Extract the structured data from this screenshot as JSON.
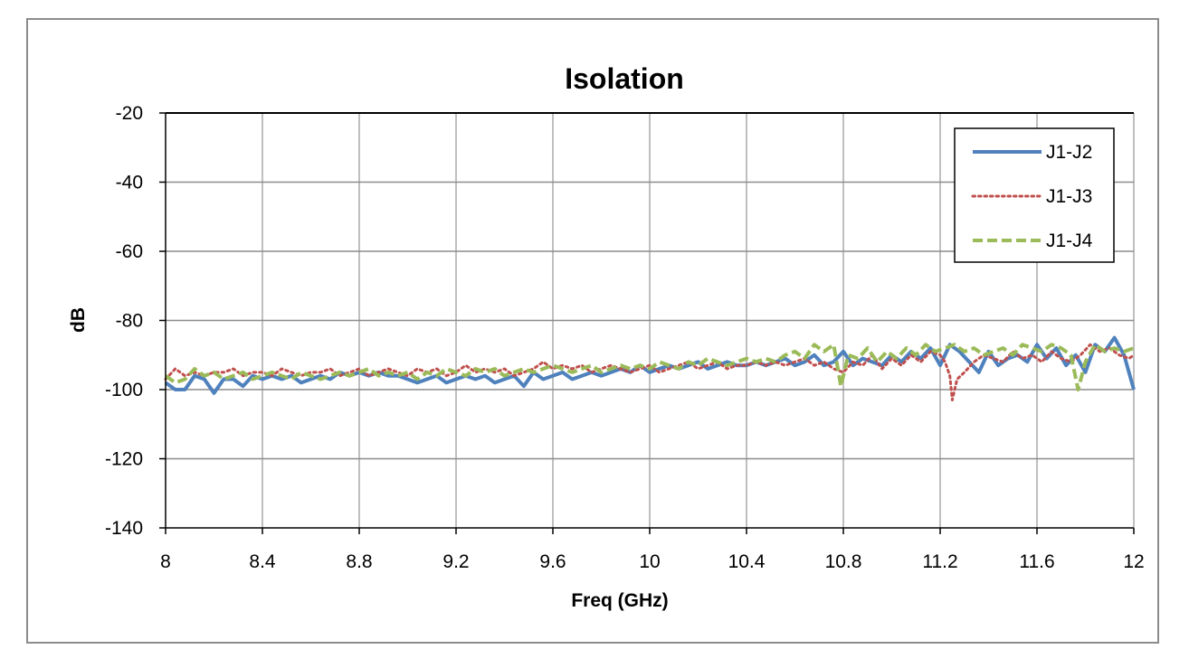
{
  "chart_data": {
    "type": "line",
    "title": "Isolation",
    "xlabel": "Freq (GHz)",
    "ylabel": "dB",
    "xlim": [
      8,
      12
    ],
    "ylim": [
      -140,
      -20
    ],
    "xticks": [
      8,
      8.4,
      8.8,
      9.2,
      9.6,
      10,
      10.4,
      10.8,
      11.2,
      11.6,
      12
    ],
    "xtick_labels": [
      "8",
      "8.4",
      "8.8",
      "9.2",
      "9.6",
      "10",
      "10.4",
      "10.8",
      "11.2",
      "11.6",
      "12"
    ],
    "yticks": [
      -140,
      -120,
      -100,
      -80,
      -60,
      -40,
      -20
    ],
    "ytick_labels": [
      "-140",
      "-120",
      "-100",
      "-80",
      "-60",
      "-40",
      "-20"
    ],
    "grid": true,
    "legend_position": "top-right",
    "series": [
      {
        "name": "J1-J2",
        "color": "#4F81BD",
        "style": "solid",
        "x": [
          8.0,
          8.04,
          8.08,
          8.12,
          8.16,
          8.2,
          8.24,
          8.28,
          8.32,
          8.36,
          8.4,
          8.44,
          8.48,
          8.52,
          8.56,
          8.6,
          8.64,
          8.68,
          8.72,
          8.76,
          8.8,
          8.84,
          8.88,
          8.92,
          8.96,
          9.0,
          9.04,
          9.08,
          9.12,
          9.16,
          9.2,
          9.24,
          9.28,
          9.32,
          9.36,
          9.4,
          9.44,
          9.48,
          9.52,
          9.56,
          9.6,
          9.64,
          9.68,
          9.72,
          9.76,
          9.8,
          9.84,
          9.88,
          9.92,
          9.96,
          10.0,
          10.04,
          10.08,
          10.12,
          10.16,
          10.2,
          10.24,
          10.28,
          10.32,
          10.36,
          10.4,
          10.44,
          10.48,
          10.52,
          10.56,
          10.6,
          10.64,
          10.68,
          10.72,
          10.76,
          10.8,
          10.84,
          10.88,
          10.92,
          10.96,
          11.0,
          11.04,
          11.08,
          11.12,
          11.16,
          11.2,
          11.24,
          11.28,
          11.32,
          11.36,
          11.4,
          11.44,
          11.48,
          11.52,
          11.56,
          11.6,
          11.64,
          11.68,
          11.72,
          11.76,
          11.8,
          11.84,
          11.88,
          11.92,
          11.96,
          12.0
        ],
        "values": [
          -98,
          -100,
          -100,
          -96,
          -97,
          -101,
          -97,
          -97,
          -99,
          -96,
          -97,
          -96,
          -97,
          -96,
          -98,
          -97,
          -96,
          -97,
          -95,
          -96,
          -95,
          -96,
          -95,
          -96,
          -96,
          -97,
          -98,
          -97,
          -96,
          -98,
          -97,
          -96,
          -97,
          -96,
          -98,
          -97,
          -96,
          -99,
          -95,
          -97,
          -96,
          -95,
          -97,
          -96,
          -95,
          -96,
          -95,
          -94,
          -95,
          -93,
          -95,
          -94,
          -93,
          -94,
          -93,
          -92,
          -94,
          -93,
          -92,
          -93,
          -93,
          -92,
          -93,
          -92,
          -91,
          -93,
          -92,
          -90,
          -93,
          -92,
          -89,
          -93,
          -91,
          -92,
          -93,
          -90,
          -92,
          -89,
          -91,
          -88,
          -93,
          -87,
          -89,
          -92,
          -95,
          -89,
          -93,
          -91,
          -90,
          -92,
          -87,
          -91,
          -88,
          -93,
          -90,
          -95,
          -87,
          -89,
          -85,
          -90,
          -100
        ]
      },
      {
        "name": "J1-J3",
        "color": "#C0504D",
        "style": "dotted",
        "x": [
          8.0,
          8.04,
          8.08,
          8.12,
          8.16,
          8.2,
          8.24,
          8.28,
          8.32,
          8.36,
          8.4,
          8.44,
          8.48,
          8.52,
          8.56,
          8.6,
          8.64,
          8.68,
          8.72,
          8.76,
          8.8,
          8.84,
          8.88,
          8.92,
          8.96,
          9.0,
          9.04,
          9.08,
          9.12,
          9.16,
          9.2,
          9.24,
          9.28,
          9.32,
          9.36,
          9.4,
          9.44,
          9.48,
          9.52,
          9.56,
          9.6,
          9.64,
          9.68,
          9.72,
          9.76,
          9.8,
          9.84,
          9.88,
          9.92,
          9.96,
          10.0,
          10.04,
          10.08,
          10.12,
          10.16,
          10.2,
          10.24,
          10.28,
          10.32,
          10.36,
          10.4,
          10.44,
          10.48,
          10.52,
          10.56,
          10.6,
          10.64,
          10.68,
          10.72,
          10.76,
          10.8,
          10.84,
          10.88,
          10.92,
          10.96,
          11.0,
          11.04,
          11.08,
          11.12,
          11.16,
          11.2,
          11.22,
          11.24,
          11.25,
          11.27,
          11.3,
          11.34,
          11.38,
          11.42,
          11.46,
          11.5,
          11.54,
          11.58,
          11.62,
          11.66,
          11.7,
          11.74,
          11.78,
          11.82,
          11.86,
          11.9,
          11.94,
          11.98,
          12.0
        ],
        "values": [
          -97,
          -94,
          -96,
          -95,
          -96,
          -95,
          -95,
          -94,
          -96,
          -95,
          -95,
          -96,
          -94,
          -95,
          -96,
          -95,
          -95,
          -94,
          -96,
          -95,
          -94,
          -96,
          -95,
          -94,
          -95,
          -96,
          -94,
          -95,
          -94,
          -96,
          -95,
          -93,
          -95,
          -94,
          -95,
          -94,
          -96,
          -95,
          -94,
          -92,
          -94,
          -93,
          -94,
          -93,
          -95,
          -94,
          -93,
          -94,
          -95,
          -94,
          -93,
          -95,
          -94,
          -93,
          -92,
          -94,
          -93,
          -92,
          -94,
          -93,
          -93,
          -92,
          -93,
          -92,
          -93,
          -92,
          -91,
          -93,
          -92,
          -94,
          -95,
          -92,
          -93,
          -90,
          -94,
          -91,
          -93,
          -90,
          -92,
          -89,
          -90,
          -92,
          -96,
          -103,
          -97,
          -95,
          -92,
          -90,
          -91,
          -92,
          -89,
          -91,
          -90,
          -92,
          -89,
          -91,
          -92,
          -90,
          -87,
          -89,
          -88,
          -90,
          -91,
          -90
        ]
      },
      {
        "name": "J1-J4",
        "color": "#9BBB59",
        "style": "dashed",
        "x": [
          8.0,
          8.04,
          8.08,
          8.12,
          8.16,
          8.2,
          8.24,
          8.28,
          8.32,
          8.36,
          8.4,
          8.44,
          8.48,
          8.52,
          8.56,
          8.6,
          8.64,
          8.68,
          8.72,
          8.76,
          8.8,
          8.84,
          8.88,
          8.92,
          8.96,
          9.0,
          9.04,
          9.08,
          9.12,
          9.16,
          9.2,
          9.24,
          9.28,
          9.32,
          9.36,
          9.4,
          9.44,
          9.48,
          9.52,
          9.56,
          9.6,
          9.64,
          9.68,
          9.72,
          9.76,
          9.8,
          9.84,
          9.88,
          9.92,
          9.96,
          10.0,
          10.04,
          10.08,
          10.12,
          10.16,
          10.2,
          10.24,
          10.28,
          10.32,
          10.36,
          10.4,
          10.44,
          10.48,
          10.52,
          10.56,
          10.6,
          10.64,
          10.68,
          10.72,
          10.76,
          10.79,
          10.82,
          10.86,
          10.9,
          10.94,
          10.98,
          11.02,
          11.06,
          11.1,
          11.14,
          11.18,
          11.22,
          11.26,
          11.3,
          11.34,
          11.38,
          11.42,
          11.46,
          11.5,
          11.54,
          11.58,
          11.62,
          11.66,
          11.7,
          11.74,
          11.77,
          11.8,
          11.84,
          11.88,
          11.92,
          11.96,
          12.0
        ],
        "values": [
          -96,
          -98,
          -97,
          -94,
          -96,
          -95,
          -97,
          -96,
          -95,
          -97,
          -96,
          -95,
          -96,
          -97,
          -95,
          -96,
          -97,
          -96,
          -95,
          -96,
          -95,
          -94,
          -96,
          -95,
          -96,
          -95,
          -97,
          -95,
          -96,
          -94,
          -95,
          -96,
          -94,
          -95,
          -94,
          -96,
          -95,
          -94,
          -95,
          -94,
          -93,
          -94,
          -95,
          -94,
          -93,
          -95,
          -94,
          -93,
          -94,
          -93,
          -94,
          -92,
          -93,
          -94,
          -92,
          -93,
          -91,
          -92,
          -93,
          -92,
          -91,
          -92,
          -91,
          -92,
          -90,
          -89,
          -91,
          -87,
          -89,
          -87,
          -99,
          -90,
          -91,
          -88,
          -92,
          -89,
          -91,
          -88,
          -90,
          -87,
          -89,
          -88,
          -87,
          -89,
          -88,
          -90,
          -89,
          -88,
          -90,
          -87,
          -88,
          -89,
          -87,
          -88,
          -90,
          -100,
          -92,
          -87,
          -89,
          -88,
          -89,
          -88
        ]
      }
    ]
  }
}
